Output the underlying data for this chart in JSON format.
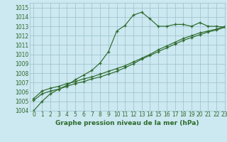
{
  "title": "Graphe pression niveau de la mer (hPa)",
  "bg_color": "#cce8f0",
  "line_color": "#2d6a2d",
  "grid_color": "#9bbfcc",
  "xlim": [
    -0.5,
    23
  ],
  "ylim": [
    1004,
    1015.5
  ],
  "xticks": [
    0,
    1,
    2,
    3,
    4,
    5,
    6,
    7,
    8,
    9,
    10,
    11,
    12,
    13,
    14,
    15,
    16,
    17,
    18,
    19,
    20,
    21,
    22,
    23
  ],
  "yticks": [
    1004,
    1005,
    1006,
    1007,
    1008,
    1009,
    1010,
    1011,
    1012,
    1013,
    1014,
    1015
  ],
  "series1": [
    1004.0,
    1005.0,
    1005.8,
    1006.3,
    1006.7,
    1007.3,
    1007.8,
    1008.3,
    1009.1,
    1010.3,
    1012.5,
    1013.1,
    1014.2,
    1014.5,
    1013.8,
    1013.0,
    1013.0,
    1013.2,
    1013.2,
    1013.0,
    1013.4,
    1013.0,
    1013.0,
    1012.9
  ],
  "series2": [
    1005.1,
    1005.8,
    1006.1,
    1006.3,
    1006.6,
    1006.9,
    1007.1,
    1007.4,
    1007.6,
    1007.9,
    1008.2,
    1008.6,
    1009.0,
    1009.5,
    1009.9,
    1010.3,
    1010.7,
    1011.1,
    1011.5,
    1011.8,
    1012.1,
    1012.4,
    1012.6,
    1012.9
  ],
  "series3": [
    1005.3,
    1006.1,
    1006.4,
    1006.6,
    1006.9,
    1007.1,
    1007.4,
    1007.6,
    1007.9,
    1008.2,
    1008.5,
    1008.8,
    1009.2,
    1009.6,
    1010.0,
    1010.5,
    1010.9,
    1011.3,
    1011.7,
    1012.0,
    1012.3,
    1012.5,
    1012.7,
    1013.0
  ],
  "tick_fontsize": 5.5,
  "xlabel_fontsize": 6.5,
  "lw": 0.85,
  "markersize": 3.5,
  "markeredgewidth": 0.9
}
